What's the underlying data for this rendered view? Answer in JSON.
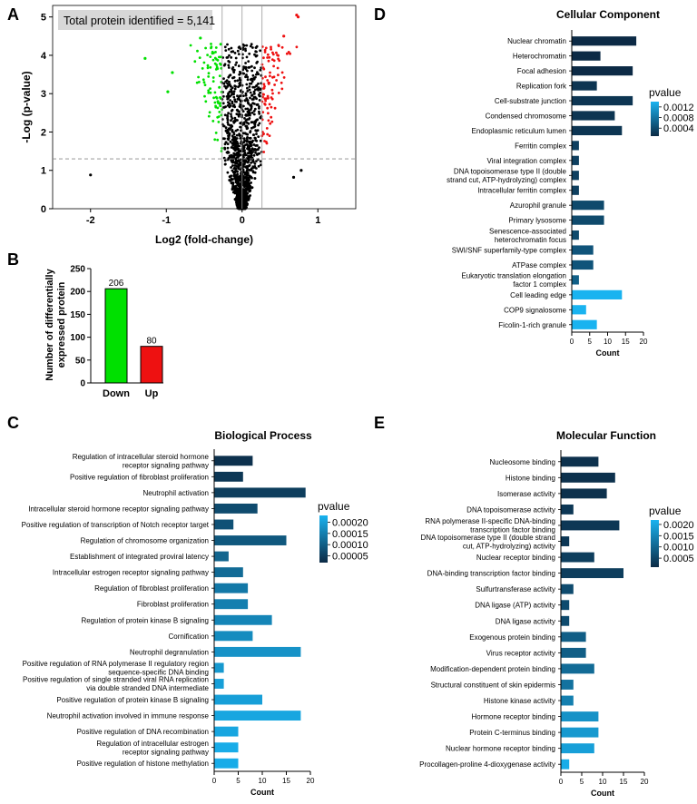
{
  "panel_labels": {
    "A": "A",
    "B": "B",
    "C": "C",
    "D": "D",
    "E": "E"
  },
  "colors": {
    "down": "#00e000",
    "up": "#ee1111",
    "nonsig": "#000000",
    "bar_outline": "#000000",
    "high_p": "#19b3f0",
    "low_p": "#0c2a45"
  },
  "chart_data": [
    {
      "panel": "A",
      "type": "scatter",
      "annotation": "Total protein identified = 5,141",
      "xlabel": "Log2 (fold-change)",
      "ylabel": "-Log (p-value)",
      "xlim": [
        -2.5,
        1.5
      ],
      "ylim": [
        0,
        5.3
      ],
      "xticks": [
        "-2",
        "-1",
        "0",
        "1"
      ],
      "yticks": [
        "0",
        "1",
        "2",
        "3",
        "4",
        "5"
      ],
      "threshold_y": 1.3,
      "threshold_x": [
        -0.263,
        0.263
      ],
      "outliers": [
        {
          "x": -2.0,
          "y": 0.88,
          "group": "nonsig"
        },
        {
          "x": -1.28,
          "y": 3.92,
          "group": "down"
        },
        {
          "x": -0.98,
          "y": 3.05,
          "group": "down"
        },
        {
          "x": -0.92,
          "y": 3.55,
          "group": "down"
        },
        {
          "x": -0.55,
          "y": 4.45,
          "group": "down"
        },
        {
          "x": 0.78,
          "y": 1.0,
          "group": "nonsig"
        },
        {
          "x": 0.72,
          "y": 5.05,
          "group": "up"
        },
        {
          "x": 0.74,
          "y": 5.0,
          "group": "up"
        },
        {
          "x": 0.55,
          "y": 4.5,
          "group": "up"
        },
        {
          "x": 0.68,
          "y": 0.82,
          "group": "nonsig"
        }
      ]
    },
    {
      "panel": "B",
      "type": "bar",
      "ylabel": "Number of differentially expressed protein",
      "categories": [
        "Down",
        "Up"
      ],
      "values": [
        206,
        80
      ],
      "value_labels": [
        "206",
        "80"
      ],
      "ylim": [
        0,
        250
      ],
      "yticks": [
        "0",
        "50",
        "100",
        "150",
        "200",
        "250"
      ]
    },
    {
      "panel": "C",
      "type": "bar",
      "orientation": "horizontal",
      "title": "Biological Process",
      "xlabel": "Count",
      "xlim": [
        0,
        20
      ],
      "xticks": [
        "0",
        "5",
        "10",
        "15",
        "20"
      ],
      "legend_title": "pvalue",
      "legend_ticks": [
        "0.00020",
        "0.00015",
        "0.00010",
        "0.00005"
      ],
      "legend_range": [
        2e-05,
        0.00023
      ],
      "categories": [
        [
          "Regulation of intracellular steroid hormone",
          "receptor signaling pathway"
        ],
        [
          "Positive regulation of fibroblast proliferation"
        ],
        [
          "Neutrophil activation"
        ],
        [
          "Intracellular steroid hormone receptor signaling pathway"
        ],
        [
          "Positive regulation of transcription of Notch receptor target"
        ],
        [
          "Regulation of chromosome organization"
        ],
        [
          "Establishment of integrated proviral latency"
        ],
        [
          "Intracellular estrogen receptor signaling pathway"
        ],
        [
          "Regulation of fibroblast proliferation"
        ],
        [
          "Fibroblast proliferation"
        ],
        [
          "Regulation of protein kinase B signaling"
        ],
        [
          "Cornification"
        ],
        [
          "Neutrophil degranulation"
        ],
        [
          "Positive regulation of RNA polymerase II regulatory region",
          "sequence-specific DNA binding"
        ],
        [
          "Positive regulation of single stranded viral RNA replication",
          "via double stranded DNA intermediate"
        ],
        [
          "Positive regulation of protein kinase B signaling"
        ],
        [
          "Neutrophil activation involved in immune response"
        ],
        [
          "Positive regulation of DNA recombination"
        ],
        [
          "Regulation of intracellular estrogen",
          "receptor signaling pathway"
        ],
        [
          "Positive regulation of histone methylation"
        ]
      ],
      "values": [
        8,
        6,
        19,
        9,
        4,
        15,
        3,
        6,
        7,
        7,
        12,
        8,
        18,
        2,
        2,
        10,
        18,
        5,
        5,
        5
      ],
      "pvalues": [
        3e-05,
        4e-05,
        5e-05,
        7e-05,
        8e-05,
        9e-05,
        0.00011,
        0.00012,
        0.00014,
        0.00015,
        0.00016,
        0.00017,
        0.00018,
        0.00019,
        0.0002,
        0.0002,
        0.00021,
        0.00021,
        0.00022,
        0.00022
      ]
    },
    {
      "panel": "D",
      "type": "bar",
      "orientation": "horizontal",
      "title": "Cellular Component",
      "xlabel": "Count",
      "xlim": [
        0,
        20
      ],
      "xticks": [
        "0",
        "5",
        "10",
        "15",
        "20"
      ],
      "legend_title": "pvalue",
      "legend_ticks": [
        "0.0012",
        "0.0008",
        "0.0004"
      ],
      "legend_range": [
        0.0001,
        0.0014
      ],
      "categories": [
        [
          "Nuclear chromatin"
        ],
        [
          "Heterochromatin"
        ],
        [
          "Focal adhesion"
        ],
        [
          "Replication fork"
        ],
        [
          "Cell-substrate junction"
        ],
        [
          "Condensed chromosome"
        ],
        [
          "Endoplasmic reticulum lumen"
        ],
        [
          "Ferritin complex"
        ],
        [
          "Viral integration complex"
        ],
        [
          "DNA topoisomerase type II (double",
          "strand cut, ATP-hydrolyzing) complex"
        ],
        [
          "Intracellular ferritin complex"
        ],
        [
          "Azurophil granule"
        ],
        [
          "Primary lysosome"
        ],
        [
          "Senescence-associated",
          "heterochromatin focus"
        ],
        [
          "SWI/SNF superfamily-type complex"
        ],
        [
          "ATPase complex"
        ],
        [
          "Eukaryotic translation elongation",
          "factor 1 complex"
        ],
        [
          "Cell leading edge"
        ],
        [
          "COP9 signalosome"
        ],
        [
          "Ficolin-1-rich granule"
        ]
      ],
      "values": [
        18,
        8,
        17,
        7,
        17,
        12,
        14,
        2,
        2,
        2,
        2,
        9,
        9,
        2,
        6,
        6,
        2,
        14,
        4,
        7
      ],
      "pvalues": [
        0.0001,
        0.0001,
        0.0001,
        0.0002,
        0.0002,
        0.0002,
        0.0002,
        0.0003,
        0.0003,
        0.0003,
        0.0003,
        0.0004,
        0.0004,
        0.0004,
        0.0005,
        0.0005,
        0.0006,
        0.0014,
        0.0014,
        0.0014
      ]
    },
    {
      "panel": "E",
      "type": "bar",
      "orientation": "horizontal",
      "title": "Molecular Function",
      "xlabel": "Count",
      "xlim": [
        0,
        20
      ],
      "xticks": [
        "0",
        "5",
        "10",
        "15",
        "20"
      ],
      "legend_title": "pvalue",
      "legend_ticks": [
        "0.0020",
        "0.0015",
        "0.0010",
        "0.0005"
      ],
      "legend_range": [
        0.0001,
        0.0022
      ],
      "categories": [
        [
          "Nucleosome binding"
        ],
        [
          "Histone binding"
        ],
        [
          "Isomerase activity"
        ],
        [
          "DNA topoisomerase activity"
        ],
        [
          "RNA polymerase II-specific DNA-binding",
          "transcription factor binding"
        ],
        [
          "DNA topoisomerase type II (double strand",
          "cut, ATP-hydrolyzing) activity"
        ],
        [
          "Nuclear receptor binding"
        ],
        [
          "DNA-binding transcription factor binding"
        ],
        [
          "Sulfurtransferase activity"
        ],
        [
          "DNA ligase (ATP) activity"
        ],
        [
          "DNA ligase activity"
        ],
        [
          "Exogenous protein binding"
        ],
        [
          "Virus receptor activity"
        ],
        [
          "Modification-dependent protein binding"
        ],
        [
          "Structural constituent of skin epidermis"
        ],
        [
          "Histone kinase activity"
        ],
        [
          "Hormone receptor binding"
        ],
        [
          "Protein C-terminus binding"
        ],
        [
          "Nuclear hormone receptor binding"
        ],
        [
          "Procollagen-proline 4-dioxygenase activity"
        ]
      ],
      "values": [
        9,
        13,
        11,
        3,
        14,
        2,
        8,
        15,
        3,
        2,
        2,
        6,
        6,
        8,
        3,
        3,
        9,
        9,
        8,
        2
      ],
      "pvalues": [
        0.0002,
        0.0002,
        0.0002,
        0.0003,
        0.0003,
        0.0003,
        0.0004,
        0.0004,
        0.0006,
        0.0006,
        0.0006,
        0.0009,
        0.0009,
        0.0011,
        0.0012,
        0.0014,
        0.0017,
        0.0018,
        0.0019,
        0.0021
      ]
    }
  ]
}
